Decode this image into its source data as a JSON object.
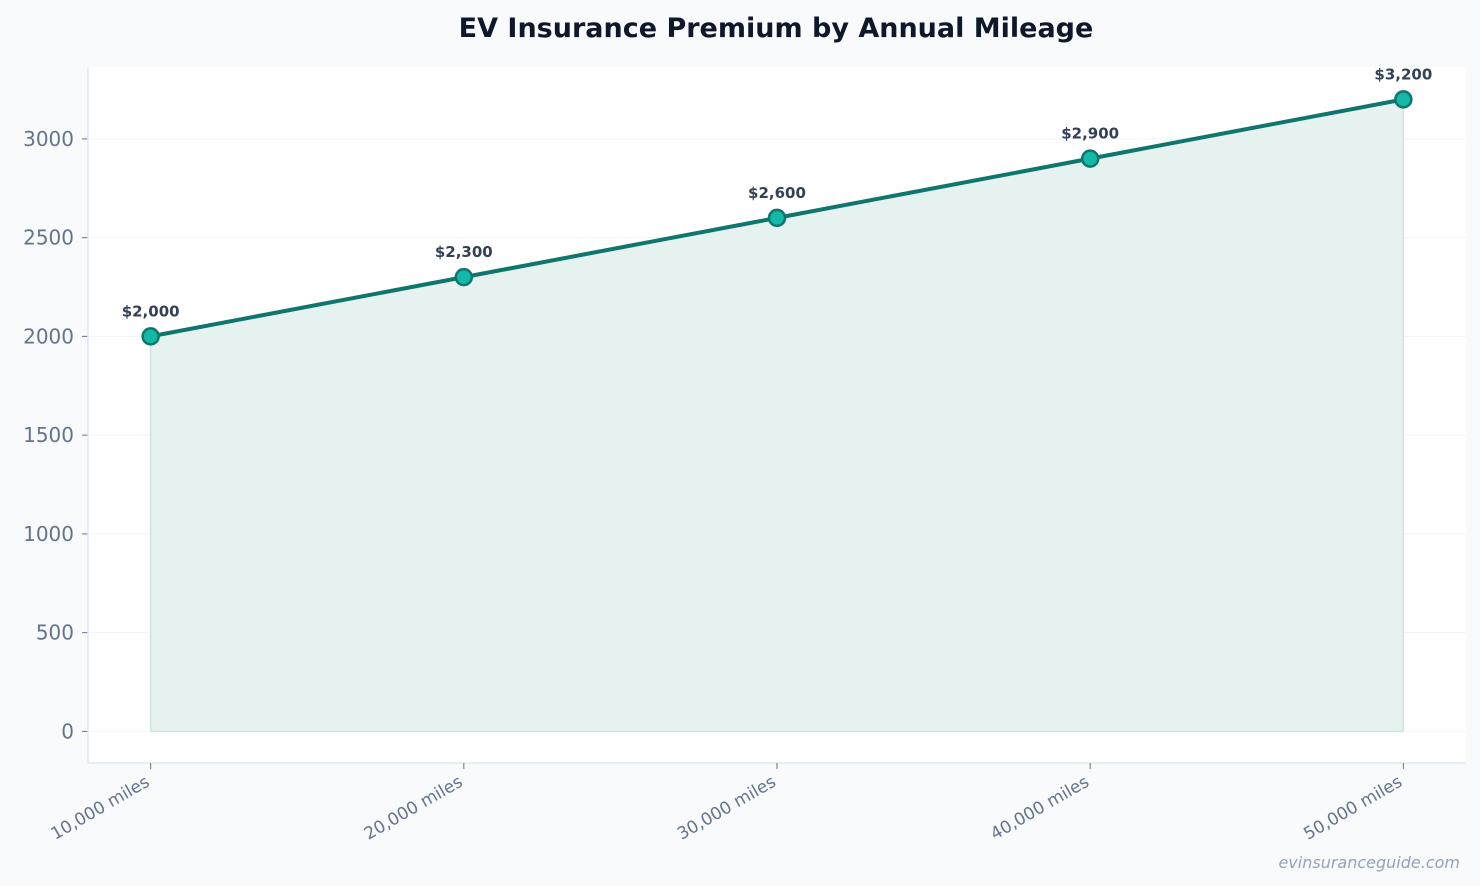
{
  "chart_data": {
    "type": "area",
    "title": "EV Insurance Premium by Annual Mileage",
    "xlabel": "",
    "ylabel": "",
    "categories": [
      "10,000 miles",
      "20,000 miles",
      "30,000 miles",
      "40,000 miles",
      "50,000 miles"
    ],
    "values": [
      2000,
      2300,
      2600,
      2900,
      3200
    ],
    "data_labels": [
      "$2,000",
      "$2,300",
      "$2,600",
      "$2,900",
      "$3,200"
    ],
    "ylim": [
      -160,
      3364
    ],
    "yticks": [
      0,
      500,
      1000,
      1500,
      2000,
      2500,
      3000
    ],
    "grid": true,
    "colors": {
      "line": "#0f766e",
      "marker": "#14b8a6",
      "fill": "#e6f2ef",
      "background": "#f8fafc",
      "plot_background": "#ffffff"
    }
  },
  "watermark": "evinsuranceguide.com"
}
